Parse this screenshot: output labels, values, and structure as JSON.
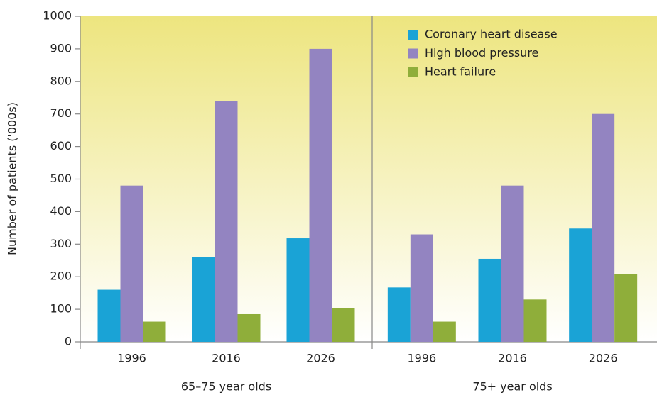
{
  "chart_data": {
    "type": "bar",
    "y_label": "Number of patients ('000s)",
    "groups": [
      "65–75 year olds",
      "75+ year olds"
    ],
    "categories": [
      "1996",
      "2016",
      "2026",
      "1996",
      "2016",
      "2026"
    ],
    "series": [
      {
        "name": "Coronary heart disease",
        "color": "#1aa3d6",
        "values": [
          160,
          260,
          318,
          167,
          255,
          348
        ]
      },
      {
        "name": "High blood pressure",
        "color": "#9384c1",
        "values": [
          480,
          740,
          900,
          330,
          480,
          700
        ]
      },
      {
        "name": "Heart failure",
        "color": "#8fae3a",
        "values": [
          62,
          85,
          103,
          62,
          130,
          208
        ]
      }
    ],
    "ylim": [
      0,
      1000
    ],
    "yticks": [
      0,
      100,
      200,
      300,
      400,
      500,
      600,
      700,
      800,
      900,
      1000
    ]
  }
}
